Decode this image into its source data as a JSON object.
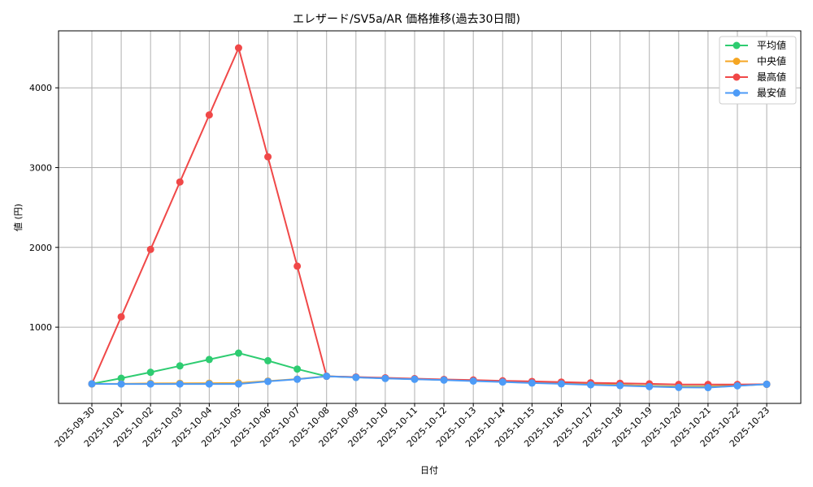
{
  "chart_data": {
    "type": "line",
    "title": "エレザード/SV5a/AR 価格推移(過去30日間)",
    "xlabel": "日付",
    "ylabel": "値 (円)",
    "ylim": [
      45,
      4720
    ],
    "yticks": [
      1000,
      2000,
      3000,
      4000
    ],
    "grid": true,
    "legend_position": "upper right",
    "x": [
      "2025-09-30",
      "2025-10-01",
      "2025-10-02",
      "2025-10-03",
      "2025-10-04",
      "2025-10-05",
      "2025-10-06",
      "2025-10-07",
      "2025-10-08",
      "2025-10-09",
      "2025-10-10",
      "2025-10-11",
      "2025-10-12",
      "2025-10-13",
      "2025-10-14",
      "2025-10-15",
      "2025-10-16",
      "2025-10-17",
      "2025-10-18",
      "2025-10-19",
      "2025-10-20",
      "2025-10-21",
      "2025-10-22",
      "2025-10-23"
    ],
    "series": [
      {
        "name": "平均値",
        "color": "#2ecc71",
        "values": [
          290,
          360,
          435,
          515,
          595,
          675,
          580,
          475,
          385,
          372,
          360,
          350,
          340,
          330,
          318,
          306,
          295,
          285,
          275,
          265,
          255,
          255,
          270,
          285
        ]
      },
      {
        "name": "中央値",
        "color": "#f5a623",
        "values": [
          290,
          290,
          295,
          297,
          298,
          300,
          325,
          350,
          385,
          372,
          360,
          350,
          340,
          330,
          318,
          306,
          295,
          285,
          275,
          262,
          252,
          252,
          268,
          285
        ]
      },
      {
        "name": "最高値",
        "color": "#f04848",
        "values": [
          290,
          1130,
          1975,
          2820,
          3660,
          4500,
          3135,
          1765,
          385,
          375,
          365,
          355,
          345,
          338,
          328,
          320,
          312,
          303,
          297,
          290,
          282,
          282,
          282,
          285
        ]
      },
      {
        "name": "最安値",
        "color": "#4d9bf7",
        "values": [
          290,
          288,
          288,
          288,
          288,
          288,
          320,
          347,
          385,
          370,
          357,
          347,
          337,
          325,
          313,
          300,
          290,
          278,
          268,
          255,
          245,
          243,
          265,
          285
        ]
      }
    ]
  }
}
